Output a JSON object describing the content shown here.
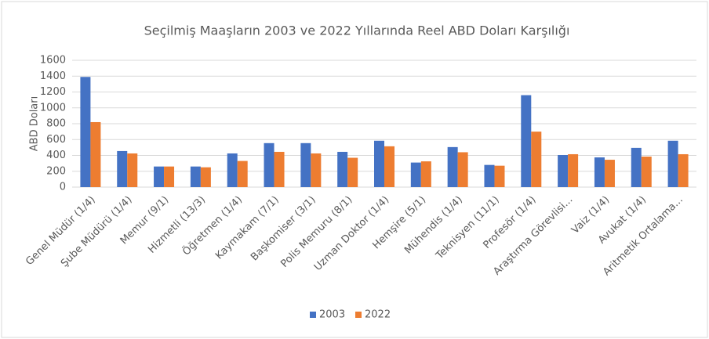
{
  "chart_data": {
    "type": "bar",
    "title": "Seçilmiş Maaşların 2003 ve 2022 Yıllarında Reel ABD Doları Karşılığı",
    "y_label": "ABD Doları",
    "categories": [
      "Genel Müdür (1/4)",
      "Şube Müdürü (1/4)",
      "Memur (9/1)",
      "Hizmetli (13/3)",
      "Öğretmen (1/4)",
      "Kaymakam (7/1)",
      "Başkomiser (3/1)",
      "Polis Memuru (8/1)",
      "Uzman Doktor (1/4)",
      "Hemşire (5/1)",
      "Mühendis (1/4)",
      "Teknisyen (11/1)",
      "Profesör (1/4)",
      "Araştırma Görevlisi...",
      "Vaiz (1/4)",
      "Avukat (1/4)",
      "Aritmetik Ortalama..."
    ],
    "series": [
      {
        "name": "2003",
        "color": "#4472c4",
        "values": [
          1390,
          455,
          260,
          260,
          425,
          555,
          555,
          445,
          585,
          310,
          505,
          280,
          1160,
          405,
          375,
          495,
          585
        ]
      },
      {
        "name": "2022",
        "color": "#ed7d31",
        "values": [
          820,
          425,
          260,
          250,
          330,
          445,
          425,
          370,
          515,
          325,
          440,
          270,
          700,
          415,
          345,
          385,
          415
        ]
      }
    ],
    "ylim": [
      0,
      1600
    ],
    "yticks": [
      0,
      200,
      400,
      600,
      800,
      1000,
      1200,
      1400,
      1600
    ],
    "grid": true,
    "legend": "bottom"
  }
}
